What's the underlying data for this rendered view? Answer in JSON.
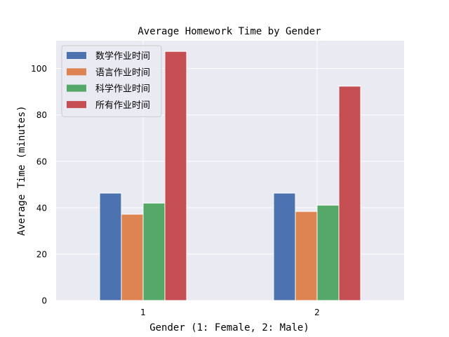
{
  "chart_data": {
    "type": "bar",
    "title": "Average Homework Time by Gender",
    "xlabel": "Gender (1: Female, 2: Male)",
    "ylabel": "Average Time (minutes)",
    "categories": [
      "1",
      "2"
    ],
    "ylim": [
      0,
      112
    ],
    "yticks": [
      0,
      20,
      40,
      60,
      80,
      100
    ],
    "grid": true,
    "legend_position": "top-left",
    "background": "#eaeaf2",
    "series": [
      {
        "name": "数学作业时间",
        "color": "#4c72b0",
        "values": [
          46.3,
          46.3
        ]
      },
      {
        "name": "语言作业时间",
        "color": "#dd8452",
        "values": [
          37.2,
          38.4
        ]
      },
      {
        "name": "科学作业时间",
        "color": "#55a868",
        "values": [
          42.0,
          41.1
        ]
      },
      {
        "name": "所有作业时间",
        "color": "#c44e52",
        "values": [
          107.4,
          92.4
        ]
      }
    ]
  }
}
